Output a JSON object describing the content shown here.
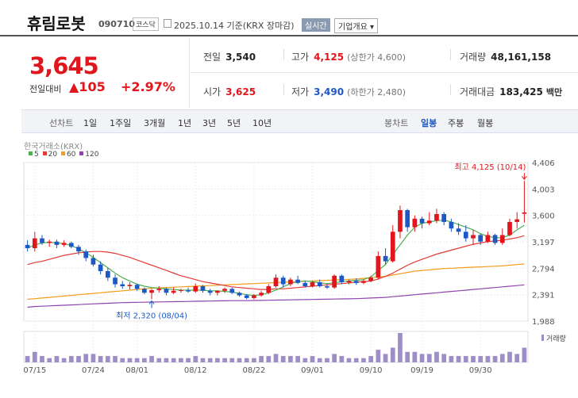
{
  "header": {
    "stock_name": "휴림로봇",
    "stock_code": "090710",
    "market": "코스닥",
    "date_label": "2025.10.14 기준(KRX 장마감)",
    "realtime_button": "실시간",
    "company_button": "기업개요 ▾"
  },
  "quote": {
    "price": "3,645",
    "compare_label": "전일대비",
    "change": "▲105",
    "change_pct": "+2.97%"
  },
  "stats": {
    "prev_label": "전일",
    "prev_value": "3,540",
    "high_label": "고가",
    "high_value": "4,125",
    "high_limit": "(상한가 4,600)",
    "volume_label": "거래량",
    "volume_value": "48,161,158",
    "open_label": "시가",
    "open_value": "3,625",
    "low_label": "저가",
    "low_value": "3,490",
    "low_limit": "(하한가 2,480)",
    "amount_label": "거래대금",
    "amount_value": "183,425",
    "amount_unit": "백만"
  },
  "toolbar": {
    "line_label": "선차트",
    "line_ranges": [
      "1일",
      "1주일",
      "3개월",
      "1년",
      "3년",
      "5년",
      "10년"
    ],
    "candle_label": "봉차트",
    "candle_ranges": [
      "일봉",
      "주봉",
      "월봉"
    ],
    "selected": "일봉"
  },
  "chart_legend": {
    "source": "한국거래소(KRX)",
    "ma": [
      {
        "label": "5",
        "color": "#4caf50"
      },
      {
        "label": "20",
        "color": "#e53935"
      },
      {
        "label": "60",
        "color": "#f59c1a"
      },
      {
        "label": "120",
        "color": "#8e44ad"
      }
    ],
    "volume_label": "거래량"
  },
  "colors": {
    "up": "#e1161c",
    "down": "#1d58c4"
  },
  "chart_data": {
    "type": "candlestick",
    "y_ticks": [
      "4,406",
      "4,003",
      "3,600",
      "3,197",
      "2,794",
      "2,391",
      "1,988"
    ],
    "ylim": [
      1988,
      4406
    ],
    "x_ticks": [
      "07/15",
      "07/24",
      "08/01",
      "08/12",
      "08/22",
      "09/01",
      "09/10",
      "09/19",
      "09/30"
    ],
    "annotation_high": "최고 4,125 (10/14)",
    "annotation_low": "최저 2,320 (08/04)",
    "candles": [
      [
        3150,
        3220,
        3050,
        3100
      ],
      [
        3100,
        3350,
        3050,
        3250
      ],
      [
        3250,
        3300,
        3150,
        3180
      ],
      [
        3180,
        3230,
        3120,
        3200
      ],
      [
        3200,
        3230,
        3100,
        3150
      ],
      [
        3150,
        3220,
        3120,
        3180
      ],
      [
        3180,
        3200,
        3100,
        3120
      ],
      [
        3120,
        3150,
        3000,
        3050
      ],
      [
        3050,
        3080,
        2900,
        2950
      ],
      [
        2950,
        3000,
        2820,
        2850
      ],
      [
        2850,
        2900,
        2700,
        2750
      ],
      [
        2750,
        2800,
        2600,
        2650
      ],
      [
        2650,
        2700,
        2500,
        2550
      ],
      [
        2550,
        2600,
        2480,
        2520
      ],
      [
        2520,
        2580,
        2470,
        2540
      ],
      [
        2540,
        2560,
        2450,
        2480
      ],
      [
        2480,
        2500,
        2400,
        2420
      ],
      [
        2420,
        2480,
        2320,
        2460
      ],
      [
        2460,
        2520,
        2420,
        2480
      ],
      [
        2480,
        2500,
        2380,
        2420
      ],
      [
        2420,
        2500,
        2400,
        2450
      ],
      [
        2450,
        2480,
        2420,
        2460
      ],
      [
        2460,
        2500,
        2420,
        2440
      ],
      [
        2440,
        2560,
        2420,
        2520
      ],
      [
        2520,
        2540,
        2420,
        2450
      ],
      [
        2450,
        2480,
        2380,
        2420
      ],
      [
        2420,
        2460,
        2380,
        2450
      ],
      [
        2450,
        2500,
        2420,
        2480
      ],
      [
        2480,
        2500,
        2400,
        2420
      ],
      [
        2420,
        2440,
        2360,
        2380
      ],
      [
        2380,
        2400,
        2320,
        2340
      ],
      [
        2340,
        2400,
        2320,
        2380
      ],
      [
        2380,
        2450,
        2360,
        2420
      ],
      [
        2420,
        2550,
        2400,
        2520
      ],
      [
        2520,
        2700,
        2500,
        2650
      ],
      [
        2650,
        2680,
        2500,
        2550
      ],
      [
        2550,
        2650,
        2520,
        2620
      ],
      [
        2620,
        2680,
        2550,
        2570
      ],
      [
        2570,
        2600,
        2500,
        2520
      ],
      [
        2520,
        2600,
        2500,
        2580
      ],
      [
        2580,
        2620,
        2500,
        2520
      ],
      [
        2520,
        2560,
        2480,
        2500
      ],
      [
        2500,
        2700,
        2480,
        2680
      ],
      [
        2680,
        2700,
        2550,
        2580
      ],
      [
        2580,
        2620,
        2550,
        2600
      ],
      [
        2600,
        2640,
        2540,
        2570
      ],
      [
        2570,
        2620,
        2550,
        2600
      ],
      [
        2600,
        2680,
        2580,
        2650
      ],
      [
        2650,
        3050,
        2620,
        2980
      ],
      [
        2980,
        3100,
        2850,
        2900
      ],
      [
        2900,
        3450,
        2880,
        3350
      ],
      [
        3350,
        3750,
        3250,
        3680
      ],
      [
        3680,
        3700,
        3350,
        3420
      ],
      [
        3420,
        3600,
        3350,
        3550
      ],
      [
        3550,
        3580,
        3400,
        3480
      ],
      [
        3480,
        3650,
        3450,
        3520
      ],
      [
        3520,
        3700,
        3480,
        3620
      ],
      [
        3620,
        3650,
        3450,
        3500
      ],
      [
        3500,
        3550,
        3350,
        3400
      ],
      [
        3400,
        3480,
        3300,
        3350
      ],
      [
        3350,
        3450,
        3200,
        3250
      ],
      [
        3250,
        3380,
        3150,
        3300
      ],
      [
        3300,
        3320,
        3150,
        3200
      ],
      [
        3200,
        3350,
        3180,
        3300
      ],
      [
        3300,
        3320,
        3150,
        3180
      ],
      [
        3180,
        3400,
        3150,
        3300
      ],
      [
        3300,
        3550,
        3280,
        3500
      ],
      [
        3500,
        3650,
        3400,
        3540
      ],
      [
        3625,
        4125,
        3490,
        3645
      ]
    ],
    "ma5": [
      3100,
      3150,
      3180,
      3190,
      3180,
      3170,
      3140,
      3090,
      3030,
      2960,
      2880,
      2800,
      2720,
      2650,
      2600,
      2550,
      2520,
      2500,
      2490,
      2480,
      2470,
      2460,
      2460,
      2460,
      2460,
      2450,
      2450,
      2440,
      2430,
      2410,
      2390,
      2380,
      2390,
      2420,
      2460,
      2510,
      2560,
      2590,
      2600,
      2590,
      2570,
      2560,
      2570,
      2590,
      2600,
      2610,
      2620,
      2660,
      2760,
      2850,
      3000,
      3150,
      3300,
      3420,
      3480,
      3500,
      3520,
      3530,
      3500,
      3460,
      3420,
      3380,
      3320,
      3280,
      3260,
      3260,
      3300,
      3380,
      3450
    ],
    "ma20": [
      2850,
      2880,
      2900,
      2930,
      2960,
      2990,
      3010,
      3030,
      3040,
      3050,
      3050,
      3040,
      3020,
      2990,
      2960,
      2920,
      2880,
      2840,
      2800,
      2760,
      2720,
      2680,
      2650,
      2620,
      2590,
      2570,
      2550,
      2530,
      2510,
      2500,
      2490,
      2480,
      2470,
      2470,
      2480,
      2480,
      2490,
      2500,
      2510,
      2520,
      2530,
      2540,
      2550,
      2560,
      2570,
      2580,
      2590,
      2600,
      2630,
      2670,
      2720,
      2780,
      2840,
      2890,
      2930,
      2970,
      3010,
      3040,
      3070,
      3100,
      3130,
      3160,
      3180,
      3200,
      3210,
      3220,
      3240,
      3260,
      3290
    ],
    "ma60": [
      2320,
      2330,
      2340,
      2350,
      2360,
      2370,
      2380,
      2390,
      2400,
      2410,
      2420,
      2430,
      2440,
      2450,
      2460,
      2470,
      2480,
      2490,
      2495,
      2500,
      2505,
      2510,
      2515,
      2520,
      2525,
      2530,
      2535,
      2540,
      2545,
      2550,
      2555,
      2560,
      2565,
      2570,
      2575,
      2580,
      2585,
      2590,
      2595,
      2600,
      2605,
      2610,
      2615,
      2620,
      2625,
      2630,
      2640,
      2650,
      2660,
      2670,
      2690,
      2710,
      2730,
      2750,
      2760,
      2770,
      2780,
      2790,
      2795,
      2800,
      2805,
      2810,
      2815,
      2820,
      2825,
      2830,
      2840,
      2850,
      2860
    ],
    "ma120": [
      2200,
      2210,
      2215,
      2220,
      2225,
      2230,
      2235,
      2240,
      2245,
      2250,
      2255,
      2260,
      2265,
      2270,
      2272,
      2274,
      2276,
      2278,
      2280,
      2282,
      2284,
      2286,
      2288,
      2290,
      2292,
      2294,
      2296,
      2298,
      2300,
      2300,
      2300,
      2302,
      2304,
      2306,
      2308,
      2310,
      2312,
      2314,
      2316,
      2318,
      2320,
      2322,
      2324,
      2326,
      2328,
      2330,
      2335,
      2340,
      2345,
      2350,
      2360,
      2370,
      2380,
      2390,
      2400,
      2410,
      2420,
      2430,
      2440,
      2450,
      2460,
      2470,
      2480,
      2490,
      2500,
      2510,
      2520,
      2530,
      2540
    ],
    "volumes": [
      3,
      5,
      3,
      2,
      3,
      2,
      3,
      3,
      4,
      4,
      3,
      3,
      3,
      2,
      2,
      2,
      2,
      3,
      2,
      2,
      2,
      2,
      2,
      3,
      2,
      2,
      2,
      2,
      2,
      2,
      2,
      2,
      3,
      3,
      4,
      3,
      3,
      3,
      2,
      3,
      2,
      2,
      4,
      3,
      2,
      2,
      2,
      3,
      6,
      4,
      7,
      14,
      5,
      5,
      4,
      4,
      5,
      4,
      3,
      3,
      3,
      3,
      3,
      3,
      3,
      4,
      5,
      4,
      7
    ]
  }
}
